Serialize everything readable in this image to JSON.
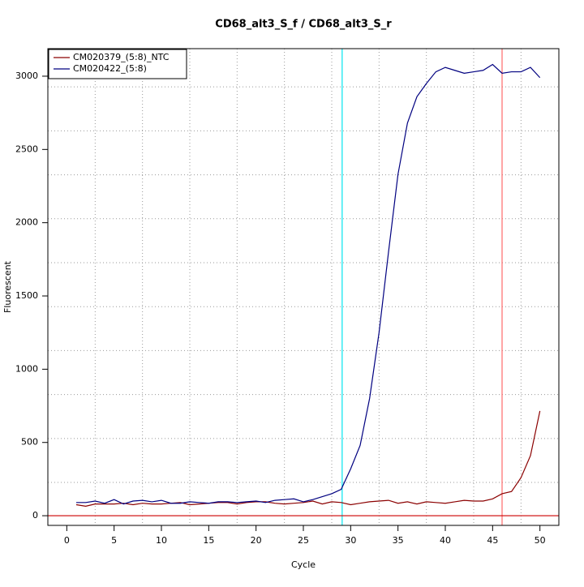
{
  "chart_data": {
    "type": "line",
    "title": "CD68_alt3_S_f / CD68_alt3_S_r",
    "x_label": "Cycle",
    "y_label": "Fluorescent",
    "x": [
      1,
      2,
      3,
      4,
      5,
      6,
      7,
      8,
      9,
      10,
      11,
      12,
      13,
      14,
      15,
      16,
      17,
      18,
      19,
      20,
      21,
      22,
      23,
      24,
      25,
      26,
      27,
      28,
      29,
      30,
      31,
      32,
      33,
      34,
      35,
      36,
      37,
      38,
      39,
      40,
      41,
      42,
      43,
      44,
      45,
      46,
      47,
      48,
      49,
      50
    ],
    "series": [
      {
        "name": "CM020379_(5:8)_NTC",
        "color": "#8b0000",
        "values": [
          75,
          65,
          80,
          80,
          80,
          85,
          75,
          85,
          80,
          80,
          85,
          90,
          75,
          80,
          85,
          90,
          90,
          80,
          90,
          95,
          95,
          85,
          80,
          85,
          90,
          100,
          80,
          95,
          90,
          75,
          85,
          95,
          100,
          105,
          85,
          95,
          80,
          95,
          90,
          85,
          95,
          105,
          100,
          100,
          115,
          150,
          165,
          260,
          410,
          715
        ]
      },
      {
        "name": "CM020422_(5:8)",
        "color": "#000080",
        "values": [
          90,
          90,
          100,
          85,
          110,
          80,
          100,
          105,
          95,
          105,
          85,
          85,
          95,
          90,
          85,
          95,
          95,
          90,
          95,
          100,
          90,
          105,
          110,
          115,
          95,
          110,
          130,
          150,
          180,
          320,
          480,
          800,
          1250,
          1800,
          2330,
          2680,
          2860,
          2950,
          3030,
          3060,
          3040,
          3020,
          3030,
          3040,
          3080,
          3020,
          3030,
          3030,
          3060,
          2990
        ]
      }
    ],
    "xlim": [
      -2,
      52
    ],
    "ylim": [
      -66,
      3188
    ],
    "xticks": [
      0,
      5,
      10,
      15,
      20,
      25,
      30,
      35,
      40,
      45,
      50
    ],
    "yticks": [
      0,
      500,
      1000,
      1500,
      2000,
      2500,
      3000
    ],
    "xgrid": [
      3,
      8,
      13,
      18,
      23,
      28,
      33,
      38,
      43,
      48
    ],
    "ygrid": [
      227,
      527,
      827,
      1127,
      1427,
      1727,
      2027,
      2327,
      2627,
      2927
    ],
    "vlines": [
      {
        "x": 29.1,
        "color": "#00e5ee"
      },
      {
        "x": 46,
        "color": "#ff6a6a"
      }
    ],
    "hlines": [
      {
        "y": 0,
        "color": "#cd0000"
      }
    ],
    "legend": "top-left"
  }
}
